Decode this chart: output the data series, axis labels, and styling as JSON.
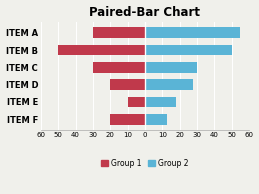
{
  "title": "Paired-Bar Chart",
  "categories": [
    "ITEM F",
    "ITEM E",
    "ITEM D",
    "ITEM C",
    "ITEM B",
    "ITEM A"
  ],
  "group1": [
    -20,
    -10,
    -20,
    -30,
    -50,
    -30
  ],
  "group2": [
    13,
    18,
    28,
    30,
    50,
    55
  ],
  "group1_color": "#c0394b",
  "group2_color": "#5ab4d6",
  "xlim": [
    -60,
    60
  ],
  "xticks": [
    -60,
    -50,
    -40,
    -30,
    -20,
    -10,
    0,
    10,
    20,
    30,
    40,
    50,
    60
  ],
  "xtick_labels": [
    "60",
    "50",
    "40",
    "30",
    "20",
    "10",
    "0",
    "10",
    "20",
    "30",
    "40",
    "50",
    "60"
  ],
  "legend_labels": [
    "Group 1",
    "Group 2"
  ],
  "background_color": "#f0f0eb",
  "title_fontsize": 8.5,
  "tick_fontsize": 5,
  "label_fontsize": 6,
  "bar_height": 0.62
}
